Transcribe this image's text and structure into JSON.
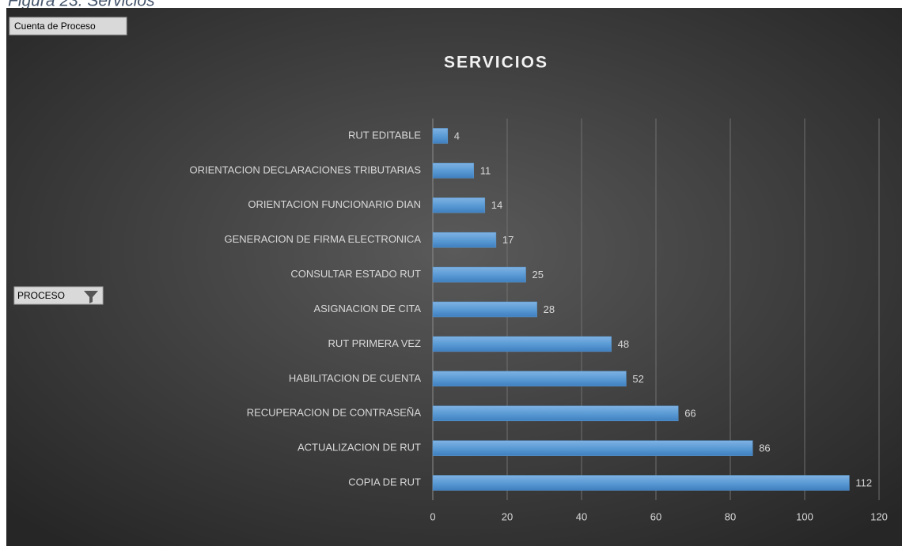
{
  "caption": "Figura 23. Servicios",
  "field_buttons": {
    "value_field": "Cuenta de Proceso",
    "axis_field": "PROCESO"
  },
  "chart_data": {
    "type": "barh",
    "title": "SERVICIOS",
    "categories": [
      "RUT EDITABLE",
      "ORIENTACION DECLARACIONES TRIBUTARIAS",
      "ORIENTACION FUNCIONARIO DIAN",
      "GENERACION DE FIRMA ELECTRONICA",
      "CONSULTAR ESTADO RUT",
      "ASIGNACION DE CITA",
      "RUT PRIMERA VEZ",
      "HABILITACION DE CUENTA",
      "RECUPERACION DE CONTRASEÑA",
      "ACTUALIZACION DE RUT",
      "COPIA DE RUT"
    ],
    "values": [
      4,
      11,
      14,
      17,
      25,
      28,
      48,
      52,
      66,
      86,
      112
    ],
    "color": "#5b9bd5",
    "xlim": [
      0,
      120
    ],
    "xticks": [
      0,
      20,
      40,
      60,
      80,
      100,
      120
    ],
    "grid": true
  }
}
